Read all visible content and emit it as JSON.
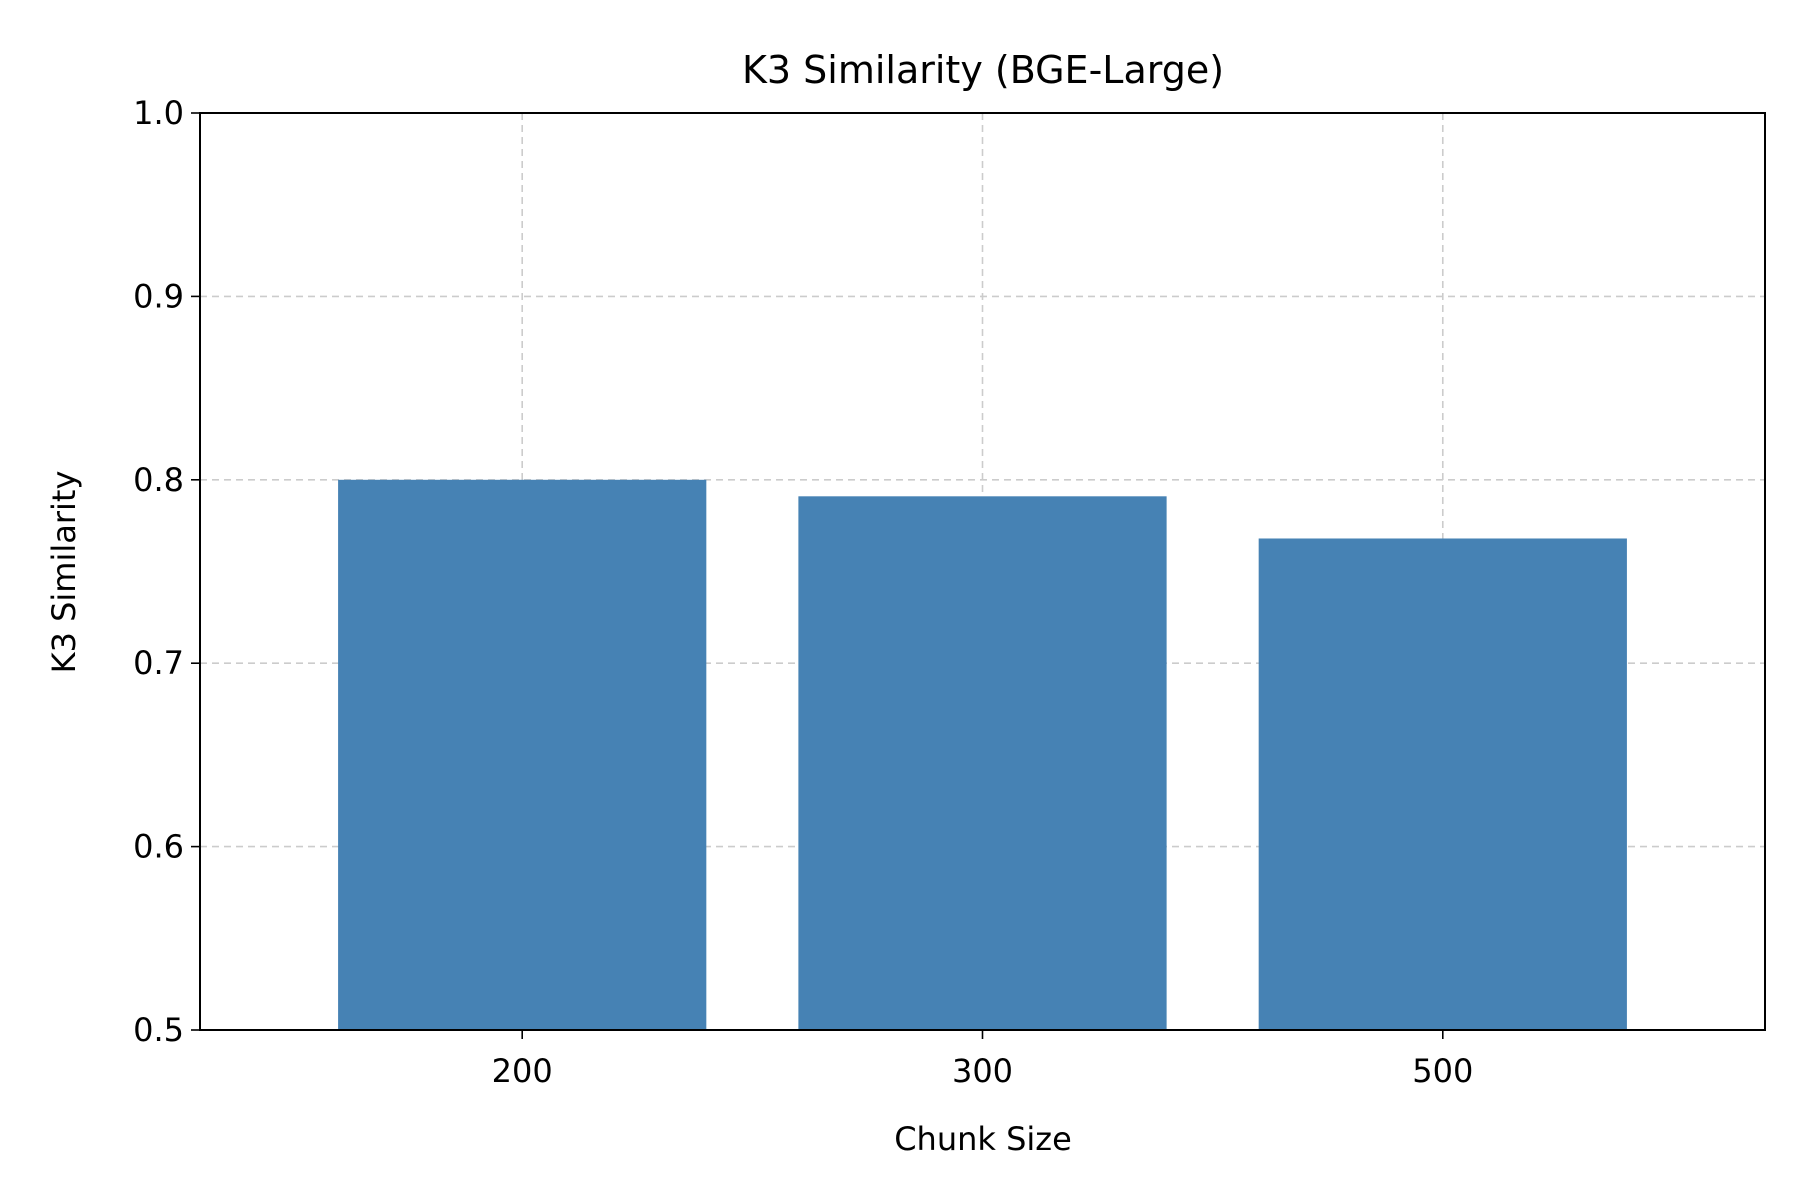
{
  "chart_data": {
    "type": "bar",
    "title": "K3 Similarity (BGE-Large)",
    "xlabel": "Chunk Size",
    "ylabel": "K3 Similarity",
    "categories": [
      "200",
      "300",
      "500"
    ],
    "values": [
      0.8,
      0.791,
      0.768
    ],
    "ylim": [
      0.5,
      1.0
    ],
    "yticks": [
      "0.5",
      "0.6",
      "0.7",
      "0.8",
      "0.9",
      "1.0"
    ],
    "grid": true,
    "legend": "none",
    "colors": {
      "bar": "#4682b4",
      "grid": "#cccccc",
      "axis": "#000000"
    }
  }
}
